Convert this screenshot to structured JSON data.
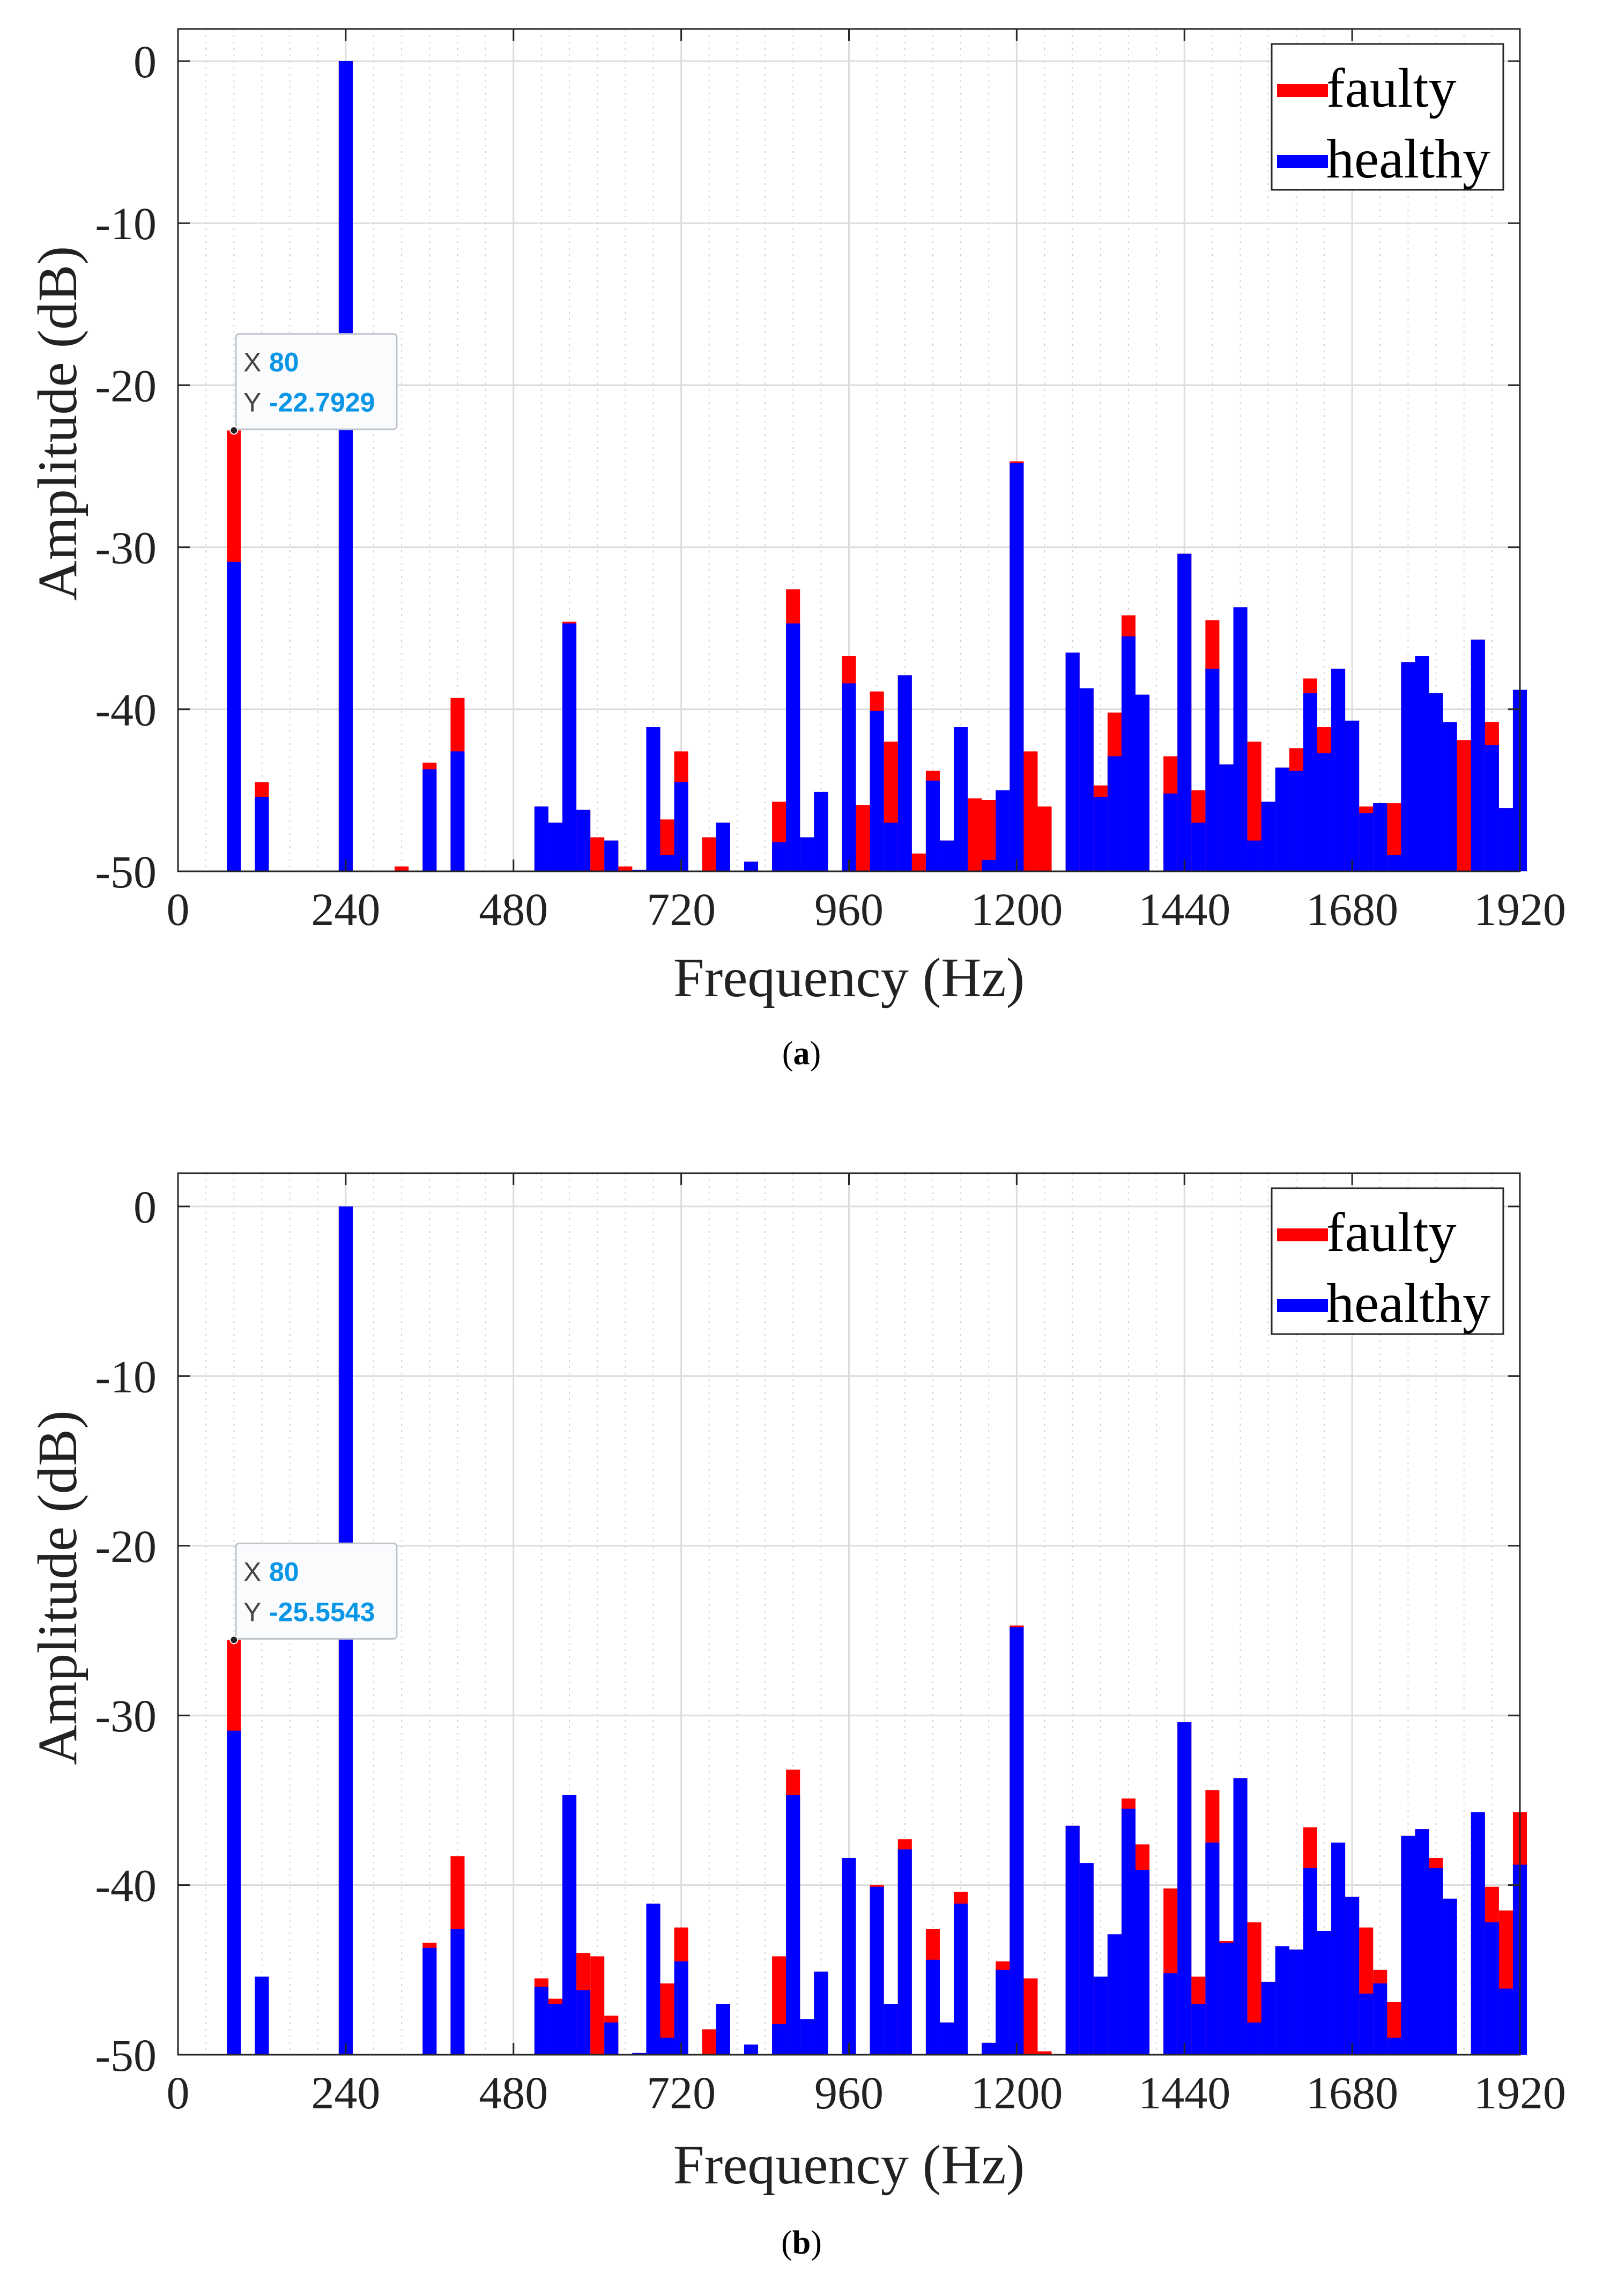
{
  "colors": {
    "faulty": "#ff0000",
    "healthy": "#0000ff",
    "grid": "#dcdcdc",
    "tip_value": "#0a96e6"
  },
  "chart_data": [
    {
      "type": "bar",
      "panel_label": "a",
      "xlabel": "Frequency (Hz)",
      "ylabel": "Amplitude (dB)",
      "xlim": [
        0,
        1920
      ],
      "ylim": [
        -50,
        0
      ],
      "xticks": [
        0,
        240,
        480,
        720,
        960,
        1200,
        1440,
        1680,
        1920
      ],
      "yticks": [
        0,
        -10,
        -20,
        -30,
        -40,
        -50
      ],
      "grid": true,
      "legend_position": "top-right",
      "bin_width_hz": 20,
      "datatip": {
        "x_label": "X",
        "x_value": "80",
        "y_label": "Y",
        "y_value": "-22.7929"
      },
      "x": [
        80,
        120,
        240,
        320,
        360,
        400,
        520,
        540,
        560,
        580,
        600,
        620,
        640,
        660,
        680,
        700,
        720,
        760,
        780,
        820,
        860,
        880,
        900,
        920,
        960,
        980,
        1000,
        1020,
        1040,
        1060,
        1080,
        1100,
        1120,
        1140,
        1160,
        1180,
        1200,
        1220,
        1240,
        1280,
        1300,
        1320,
        1340,
        1360,
        1380,
        1420,
        1440,
        1460,
        1480,
        1500,
        1520,
        1540,
        1560,
        1580,
        1600,
        1620,
        1640,
        1660,
        1680,
        1700,
        1720,
        1740,
        1760,
        1780,
        1800,
        1820,
        1840,
        1860,
        1880,
        1900,
        1920
      ],
      "series": [
        {
          "name": "faulty",
          "values": [
            -22.79,
            -44.5,
            0,
            -49.7,
            -43.3,
            -39.3,
            -46,
            -47,
            -34.6,
            -46.2,
            -47.9,
            -48.1,
            -49.7,
            -50,
            -41.1,
            -46.8,
            -42.6,
            -47.9,
            -47,
            -49.4,
            -45.7,
            -32.6,
            -47.9,
            -45.1,
            -36.7,
            -45.9,
            -38.9,
            -42,
            -37.9,
            -48.9,
            -43.8,
            -48.1,
            -41.1,
            -45.5,
            -45.6,
            -45,
            -24.7,
            -42.6,
            -46,
            -36.5,
            -38.7,
            -44.7,
            -40.2,
            -34.2,
            -39.1,
            -42.9,
            -30.4,
            -45,
            -34.5,
            -43.4,
            -33.7,
            -42,
            -45.7,
            -43.6,
            -42.4,
            -38.1,
            -41.1,
            -37.5,
            -40.7,
            -46,
            -45.8,
            -45.8,
            -37.1,
            -36.7,
            -39,
            -40.8,
            -41.9,
            -35.7,
            -40.8,
            -46.1,
            -38.8
          ]
        },
        {
          "name": "healthy",
          "values": [
            -30.9,
            -45.4,
            0,
            -50,
            -43.7,
            -42.6,
            -46,
            -47,
            -34.7,
            -46.2,
            -50,
            -48.1,
            -50,
            -49.9,
            -41.1,
            -49,
            -44.5,
            -50,
            -47,
            -49.4,
            -48.2,
            -34.7,
            -47.9,
            -45.1,
            -38.4,
            -50,
            -40.1,
            -47,
            -37.9,
            -50,
            -44.4,
            -48.1,
            -41.1,
            -50,
            -49.3,
            -45,
            -24.8,
            -50,
            -50,
            -36.5,
            -38.7,
            -45.4,
            -42.9,
            -35.5,
            -39.1,
            -45.2,
            -30.4,
            -47,
            -37.5,
            -43.4,
            -33.7,
            -48.1,
            -45.7,
            -43.6,
            -43.8,
            -39,
            -42.7,
            -37.5,
            -40.7,
            -46.4,
            -45.8,
            -49,
            -37.1,
            -36.7,
            -39,
            -40.8,
            -50,
            -35.7,
            -42.2,
            -46.1,
            -38.8
          ]
        }
      ]
    },
    {
      "type": "bar",
      "panel_label": "b",
      "xlabel": "Frequency (Hz)",
      "ylabel": "Amplitude (dB)",
      "xlim": [
        0,
        1920
      ],
      "ylim": [
        -50,
        0
      ],
      "xticks": [
        0,
        240,
        480,
        720,
        960,
        1200,
        1440,
        1680,
        1920
      ],
      "yticks": [
        0,
        -10,
        -20,
        -30,
        -40,
        -50
      ],
      "grid": true,
      "legend_position": "top-right",
      "bin_width_hz": 20,
      "datatip": {
        "x_label": "X",
        "x_value": "80",
        "y_label": "Y",
        "y_value": "-25.5543"
      },
      "x": [
        80,
        120,
        240,
        320,
        360,
        400,
        520,
        540,
        560,
        580,
        600,
        620,
        640,
        660,
        680,
        700,
        720,
        760,
        780,
        820,
        860,
        880,
        900,
        920,
        960,
        980,
        1000,
        1020,
        1040,
        1060,
        1080,
        1100,
        1120,
        1140,
        1160,
        1180,
        1200,
        1220,
        1240,
        1280,
        1300,
        1320,
        1340,
        1360,
        1380,
        1420,
        1440,
        1460,
        1480,
        1500,
        1520,
        1540,
        1560,
        1580,
        1600,
        1620,
        1640,
        1660,
        1680,
        1700,
        1720,
        1740,
        1760,
        1780,
        1800,
        1820,
        1840,
        1860,
        1880,
        1900,
        1920
      ],
      "series": [
        {
          "name": "faulty",
          "values": [
            -25.55,
            -45.4,
            0,
            -50,
            -43.4,
            -38.3,
            -45.5,
            -46.7,
            -34.7,
            -44,
            -44.2,
            -47.7,
            -50,
            -49.9,
            -41.1,
            -45.8,
            -42.5,
            -48.5,
            -47,
            -49.4,
            -44.2,
            -33.2,
            -47.9,
            -45.1,
            -38.4,
            -50,
            -40,
            -47,
            -37.3,
            -50,
            -42.6,
            -48.1,
            -40.4,
            -50,
            -49.3,
            -44.5,
            -24.7,
            -45.5,
            -49.8,
            -36.5,
            -38.7,
            -45.4,
            -42.9,
            -34.9,
            -37.6,
            -40.2,
            -30.4,
            -45.4,
            -34.4,
            -43.3,
            -33.7,
            -42.2,
            -45.7,
            -43.6,
            -43.8,
            -36.6,
            -42.7,
            -37.5,
            -40.7,
            -42.5,
            -45,
            -46.9,
            -37.1,
            -36.7,
            -38.4,
            -40.8,
            -50,
            -35.7,
            -40.1,
            -41.5,
            -35.7
          ]
        },
        {
          "name": "healthy",
          "values": [
            -30.9,
            -45.4,
            0,
            -50,
            -43.7,
            -42.6,
            -46,
            -47,
            -34.7,
            -46.2,
            -50,
            -48.1,
            -50,
            -49.9,
            -41.1,
            -49,
            -44.5,
            -50,
            -47,
            -49.4,
            -48.2,
            -34.7,
            -47.9,
            -45.1,
            -38.4,
            -50,
            -40.1,
            -47,
            -37.9,
            -50,
            -44.4,
            -48.1,
            -41.1,
            -50,
            -49.3,
            -45,
            -24.8,
            -50,
            -50,
            -36.5,
            -38.7,
            -45.4,
            -42.9,
            -35.5,
            -39.1,
            -45.2,
            -30.4,
            -47,
            -37.5,
            -43.4,
            -33.7,
            -48.1,
            -45.7,
            -43.6,
            -43.8,
            -39,
            -42.7,
            -37.5,
            -40.7,
            -46.4,
            -45.8,
            -49,
            -37.1,
            -36.7,
            -39,
            -40.8,
            -50,
            -35.7,
            -42.2,
            -46.1,
            -38.8
          ]
        }
      ]
    }
  ]
}
